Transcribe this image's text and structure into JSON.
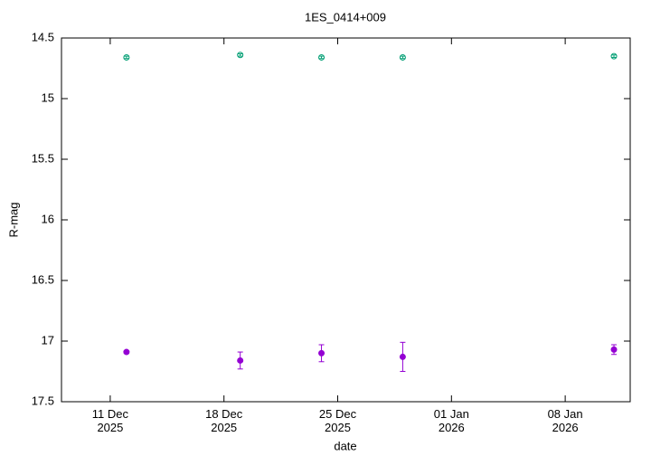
{
  "chart_data": {
    "type": "errorbar",
    "title": "1ES_0414+009",
    "xlabel": "date",
    "ylabel": "R-mag",
    "xlim": [
      "2025-12-08",
      "2026-01-12"
    ],
    "xticks": [
      {
        "value": "2025-12-11",
        "label": "11 Dec\n2025"
      },
      {
        "value": "2025-12-18",
        "label": "18 Dec\n2025"
      },
      {
        "value": "2025-12-25",
        "label": "25 Dec\n2025"
      },
      {
        "value": "2026-01-01",
        "label": "01 Jan\n2026"
      },
      {
        "value": "2026-01-08",
        "label": "08 Jan\n2026"
      }
    ],
    "ylim": [
      17.5,
      14.5
    ],
    "yticks": [
      14.5,
      15,
      15.5,
      16,
      16.5,
      17,
      17.5
    ],
    "series": [
      {
        "color": "#009e73",
        "marker": "open-circle",
        "x": [
          "2025-12-12",
          "2025-12-19",
          "2025-12-24",
          "2025-12-29",
          "2026-01-11"
        ],
        "values": [
          14.66,
          14.64,
          14.66,
          14.66,
          14.65
        ],
        "errors": [
          0.01,
          0.01,
          0.01,
          0.01,
          0.01
        ]
      },
      {
        "color": "#9400d3",
        "marker": "filled-circle",
        "x": [
          "2025-12-12",
          "2025-12-19",
          "2025-12-24",
          "2025-12-29",
          "2026-01-11"
        ],
        "values": [
          17.09,
          17.16,
          17.1,
          17.13,
          17.07
        ],
        "errors": [
          0.01,
          0.07,
          0.07,
          0.12,
          0.04
        ]
      }
    ]
  }
}
